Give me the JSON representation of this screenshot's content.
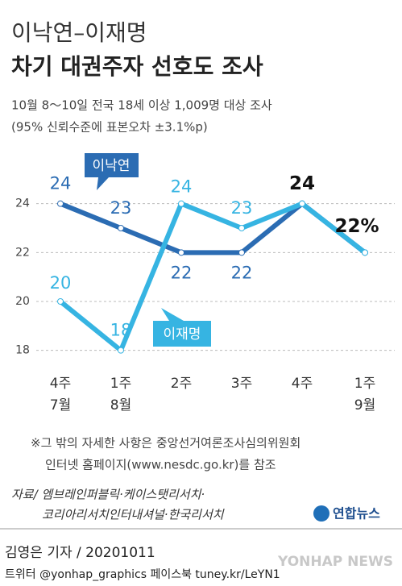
{
  "chart_data": {
    "type": "line",
    "title_top": "이낙연–이재명",
    "title": "차기 대권주자 선호도 조사",
    "subtitle": "10월 8～10일 전국 18세 이상 1,009명 대상 조사",
    "subtitle_note": "(95% 신뢰수준에 표본오차 ±3.1%p)",
    "categories": [
      "4주",
      "1주",
      "2주",
      "3주",
      "4주",
      "1주"
    ],
    "category_months": [
      "7월",
      "8월",
      null,
      null,
      null,
      "9월"
    ],
    "ylim": [
      17,
      26
    ],
    "yticks": [
      18,
      20,
      22,
      24
    ],
    "grid": true,
    "series": [
      {
        "name": "이낙연",
        "color": "#2b6cb3",
        "values": [
          24,
          23,
          22,
          22,
          24,
          22
        ],
        "value_labels": [
          "24",
          "23",
          "22",
          "22",
          "24",
          "22%"
        ]
      },
      {
        "name": "이재명",
        "color": "#36b4e2",
        "values": [
          20,
          18,
          24,
          23,
          24,
          22
        ],
        "value_labels": [
          "20",
          "18",
          "24",
          "23",
          null,
          null
        ]
      }
    ],
    "footnote": [
      "※그 밖의 자세한 사항은 중앙선거여론조사심의위원회",
      "인터넷 홈페이지(www.nesdc.go.kr)를 참조"
    ],
    "source": [
      "자료/ 엠브레인퍼블릭·케이스탯리서치·",
      "코리아리서치인터내셔널·한국리서치"
    ],
    "logo": "연합뉴스",
    "credit": "김영은 기자 / 20201011",
    "social": "트위터 @yonhap_graphics  페이스북 tuney.kr/LeYN1",
    "watermark": "YONHAP NEWS"
  }
}
